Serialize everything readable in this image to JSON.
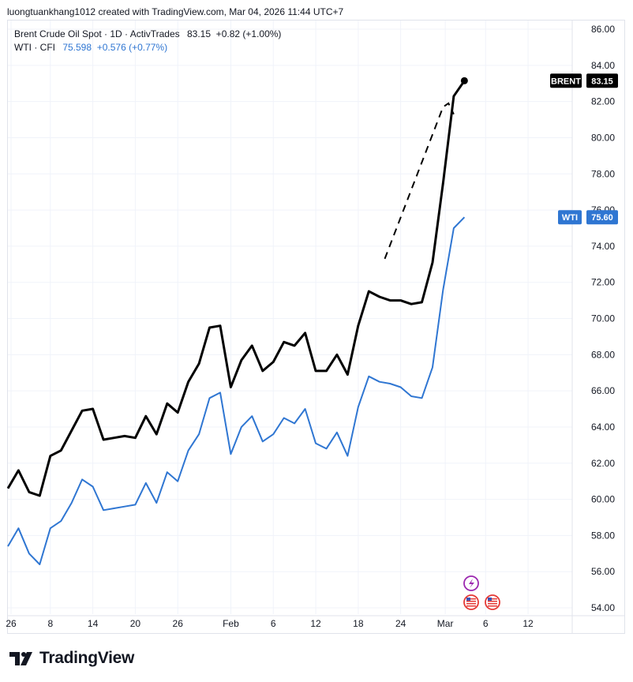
{
  "header": {
    "caption": "luongtuankhang1012 created with TradingView.com, Mar 04, 2026 11:44 UTC+7"
  },
  "legend": {
    "brent_symbol": "Brent Crude Oil Spot · 1D · ActivTrades",
    "brent_values": "83.15  +0.82 (+1.00%)",
    "wti_symbol": "WTI · CFI",
    "wti_values": "75.598  +0.576 (+0.77%)"
  },
  "footer": {
    "logo_text": "TradingView"
  },
  "colors": {
    "brent": "#000000",
    "wti": "#2f76d2",
    "grid": "#f0f3fa",
    "axis_text": "#131722"
  },
  "icons": [
    "lightning-event-icon",
    "us-flag-icon",
    "us-flag-icon"
  ],
  "chart_data": {
    "type": "line",
    "grid": true,
    "y_axis_position": "right",
    "ylim": [
      53.6,
      86.5
    ],
    "y_ticks": [
      "86.00",
      "84.00",
      "82.00",
      "80.00",
      "78.00",
      "76.00",
      "74.00",
      "72.00",
      "70.00",
      "68.00",
      "66.00",
      "64.00",
      "62.00",
      "60.00",
      "58.00",
      "56.00",
      "54.00"
    ],
    "x_ticks": [
      "26",
      "8",
      "14",
      "20",
      "26",
      "Feb",
      "6",
      "12",
      "18",
      "24",
      "Mar",
      "6",
      "12"
    ],
    "price_labels": [
      {
        "name": "BRENT",
        "value": "83.15"
      },
      {
        "name": "WTI",
        "value": "75.60"
      }
    ],
    "series": [
      {
        "name": "BRENT",
        "values": [
          60.6,
          61.6,
          60.4,
          60.2,
          62.4,
          62.7,
          63.8,
          64.9,
          65.0,
          63.3,
          63.4,
          63.5,
          63.4,
          64.6,
          63.6,
          65.3,
          64.8,
          66.5,
          67.5,
          69.5,
          69.6,
          66.2,
          67.7,
          68.5,
          67.1,
          67.6,
          68.7,
          68.5,
          69.2,
          67.1,
          67.1,
          68.0,
          66.9,
          69.6,
          71.5,
          71.2,
          71.0,
          71.0,
          70.8,
          70.9,
          73.1,
          77.5,
          82.3,
          83.15
        ]
      },
      {
        "name": "WTI",
        "values": [
          57.4,
          58.4,
          57.0,
          56.4,
          58.4,
          58.8,
          59.8,
          61.1,
          60.7,
          59.4,
          59.5,
          59.6,
          59.7,
          60.9,
          59.8,
          61.5,
          61.0,
          62.7,
          63.6,
          65.6,
          65.9,
          62.5,
          64.0,
          64.6,
          63.2,
          63.6,
          64.5,
          64.2,
          65.0,
          63.1,
          62.8,
          63.7,
          62.4,
          65.1,
          66.8,
          66.5,
          66.4,
          66.2,
          65.7,
          65.6,
          67.3,
          71.6,
          75.0,
          75.6
        ]
      }
    ],
    "drawing": {
      "type": "dashed-line",
      "points": [
        [
          35.5,
          73.3
        ],
        [
          41.0,
          81.7
        ],
        [
          41.5,
          81.9
        ],
        [
          42.0,
          81.3
        ]
      ]
    }
  }
}
